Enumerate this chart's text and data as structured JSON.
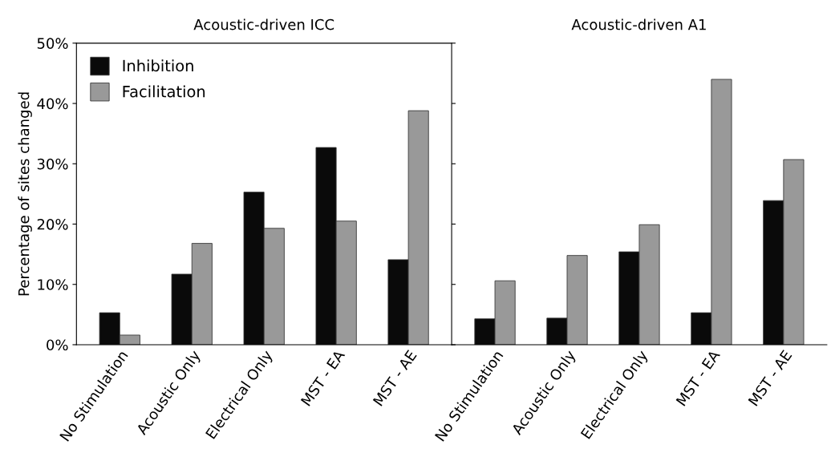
{
  "chart_data": [
    {
      "type": "bar",
      "title": "Acoustic-driven ICC",
      "ylabel": "Percentage of sites changed",
      "categories": [
        "No Stimulation",
        "Acoustic Only",
        "Electrical Only",
        "MST - EA",
        "MST - AE"
      ],
      "series": [
        {
          "name": "Inhibition",
          "color": "#0a0a0a",
          "values": [
            5.3,
            11.7,
            25.3,
            32.7,
            14.1
          ]
        },
        {
          "name": "Facilitation",
          "color": "#999999",
          "values": [
            1.6,
            16.8,
            19.3,
            20.5,
            38.8
          ]
        }
      ],
      "ylim": [
        0,
        50
      ],
      "yticks": [
        {
          "value": 0,
          "label": "0%"
        },
        {
          "value": 10,
          "label": "10%"
        },
        {
          "value": 20,
          "label": "20%"
        },
        {
          "value": 30,
          "label": "30%"
        },
        {
          "value": 40,
          "label": "40%"
        },
        {
          "value": 50,
          "label": "50%"
        }
      ],
      "legend": "top left",
      "grid": false
    },
    {
      "type": "bar",
      "title": "Acoustic-driven A1",
      "categories": [
        "No Stimulation",
        "Acoustic Only",
        "Electrical Only",
        "MST - EA",
        "MST - AE"
      ],
      "series": [
        {
          "color": "#0a0a0a",
          "values": [
            4.3,
            4.4,
            15.4,
            5.3,
            23.9
          ]
        },
        {
          "color": "#999999",
          "values": [
            10.6,
            14.8,
            19.9,
            44.0,
            30.7
          ]
        }
      ],
      "ylim": [
        0,
        50
      ],
      "yticks": [
        {
          "value": 0,
          "label": null
        },
        {
          "value": 10,
          "label": null
        },
        {
          "value": 20,
          "label": null
        },
        {
          "value": 30,
          "label": null
        },
        {
          "value": 40,
          "label": null
        },
        {
          "value": 50,
          "label": null
        }
      ],
      "tick_labels": "x",
      "grid": false
    }
  ]
}
